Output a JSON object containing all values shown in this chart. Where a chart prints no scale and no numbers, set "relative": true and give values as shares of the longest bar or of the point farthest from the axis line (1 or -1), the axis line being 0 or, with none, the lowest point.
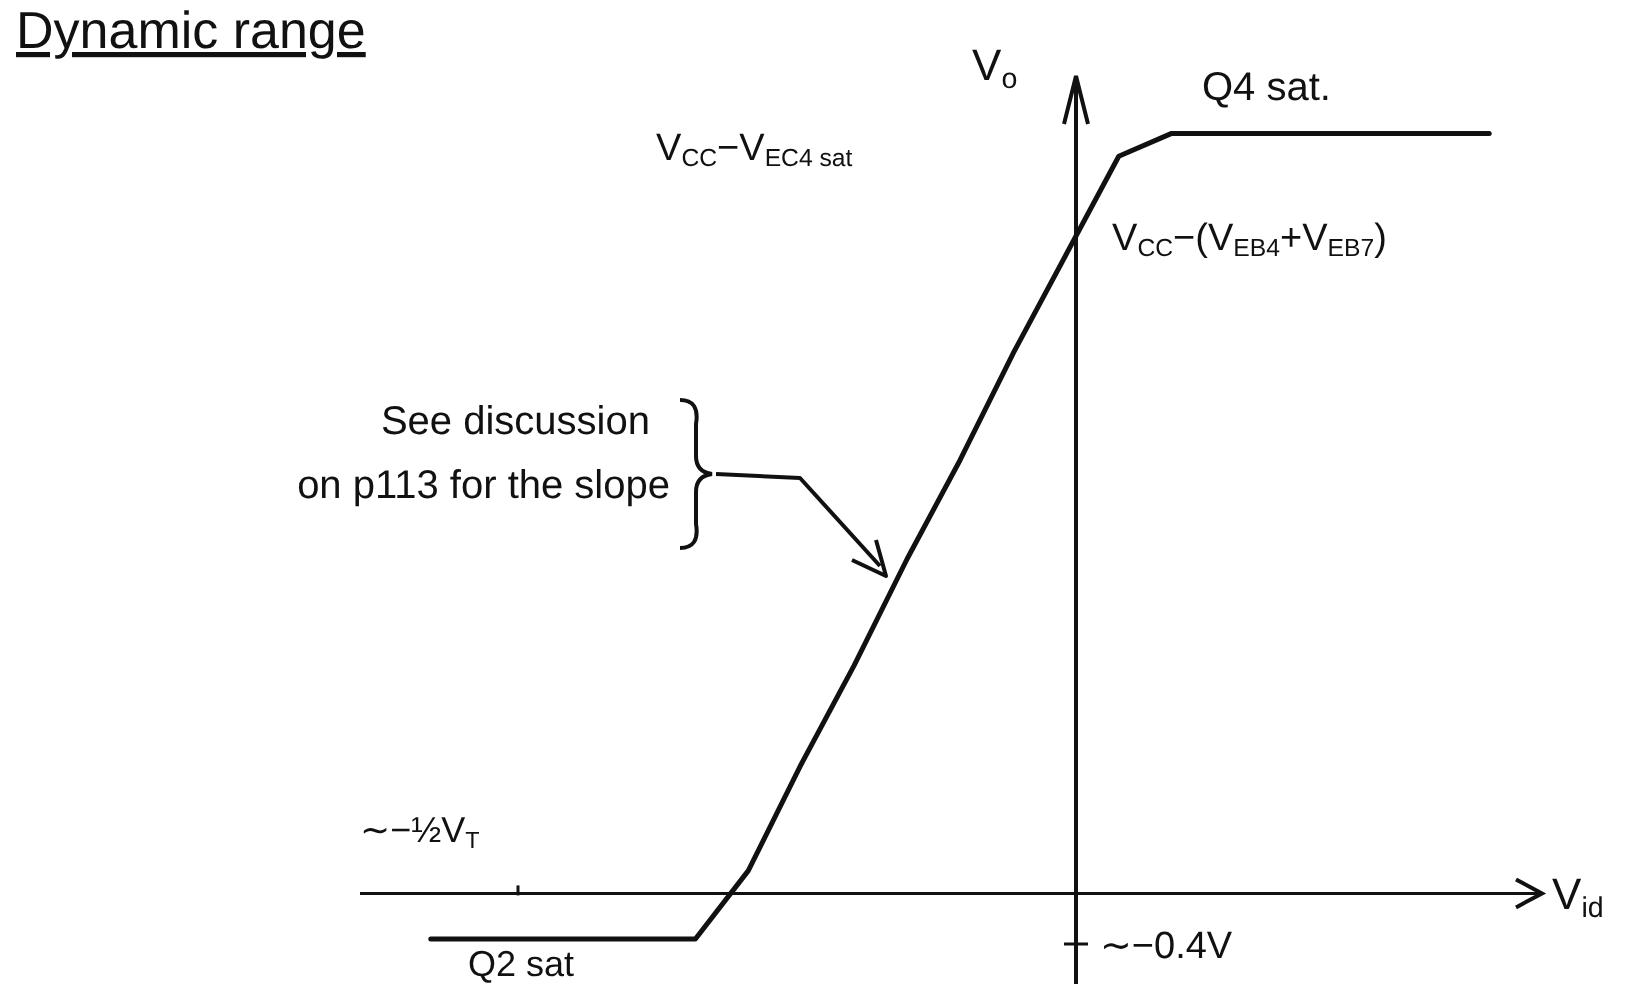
{
  "chart_data": {
    "type": "line",
    "title": "Dynamic range",
    "xlabel": "V$_{id}$",
    "ylabel": "V$_{o}$",
    "relative": true,
    "color": "#111111",
    "categories": [
      null,
      null,
      null,
      null,
      null,
      null,
      null,
      null,
      null,
      null,
      null,
      null,
      null,
      null,
      null,
      null,
      null,
      null,
      null,
      null,
      null
    ],
    "values": [
      -0.06,
      -0.06,
      -0.06,
      -0.06,
      -0.06,
      -0.06,
      0.03,
      0.17,
      0.3,
      0.44,
      0.57,
      0.71,
      0.84,
      0.97,
      1,
      1,
      1,
      1,
      1,
      1,
      1
    ],
    "annotations": [
      "V$_{CC}$−V$_{EC4 sat}$",
      "Q4 sat.",
      "V$_{CC}$−(V$_{EB4}$+V$_{EB7}$)",
      "See discussion on p113 for the slope",
      "∼−½V$_{T}$",
      "Q2 sat",
      "∼−0.4V"
    ]
  }
}
